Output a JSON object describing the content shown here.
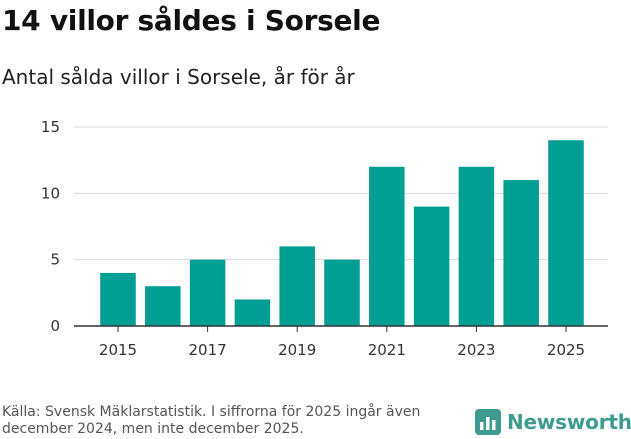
{
  "header": {
    "title": "14 villor såldes i Sorsele",
    "subtitle": "Antal sålda villor i Sorsele, år för år"
  },
  "chart_data": {
    "type": "bar",
    "title": "14 villor såldes i Sorsele",
    "subtitle": "Antal sålda villor i Sorsele, år för år",
    "categories": [
      "2015",
      "2016",
      "2017",
      "2018",
      "2019",
      "2020",
      "2021",
      "2022",
      "2023",
      "2024",
      "2025"
    ],
    "values": [
      4,
      3,
      5,
      2,
      6,
      5,
      12,
      9,
      12,
      11,
      14
    ],
    "x_tick_labels": [
      "2015",
      "2017",
      "2019",
      "2021",
      "2023",
      "2025"
    ],
    "y_ticks": [
      0,
      5,
      10,
      15
    ],
    "ylim": [
      0,
      15
    ],
    "xlabel": "",
    "ylabel": "",
    "grid": true,
    "legend": "none",
    "bar_color": "#009e93"
  },
  "footer": {
    "source": "Källa: Svensk Mäklarstatistik. I siffrorna för 2025 ingår även december 2024, men inte december 2025.",
    "brand": "Newsworthy",
    "brand_icon": "bar-chart-icon",
    "brand_color": "#3e9b8f"
  }
}
